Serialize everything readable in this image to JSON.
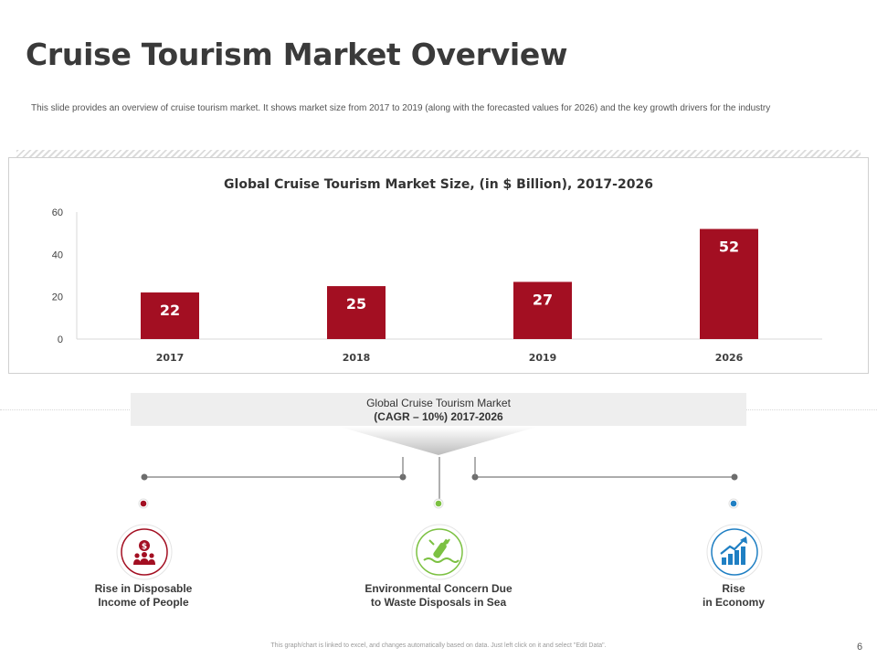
{
  "title": "Cruise Tourism Market Overview",
  "subtitle": "This slide provides an overview of cruise tourism market. It shows market size from 2017 to 2019 (along with the forecasted values for 2026) and the key growth drivers for the industry",
  "chart_data": {
    "type": "bar",
    "title": "Global Cruise Tourism Market Size, (in $ Billion), 2017-2026",
    "categories": [
      "2017",
      "2018",
      "2019",
      "2026"
    ],
    "values": [
      22,
      25,
      27,
      52
    ],
    "ylim": [
      0,
      60
    ],
    "yticks": [
      0,
      20,
      40,
      60
    ],
    "xlabel": "",
    "ylabel": "",
    "bar_color": "#a30f22",
    "grid": false
  },
  "cagr": {
    "line1": "Global Cruise Tourism Market",
    "line2": "(CAGR – 10%) 2017-2026"
  },
  "drivers": [
    {
      "line1": "Rise in Disposable",
      "line2": "Income of People",
      "color": "#a30f22",
      "icon": "dollar-people-icon"
    },
    {
      "line1": "Environmental Concern Due",
      "line2": "to Waste Disposals  in Sea",
      "color": "#7cc142",
      "icon": "bottle-waste-icon"
    },
    {
      "line1": "Rise",
      "line2": "in Economy",
      "color": "#1f7fc3",
      "icon": "growth-chart-icon"
    }
  ],
  "footer_note": "This graph/chart is linked to excel, and changes automatically based on data. Just left click on it and select \"Edit Data\".",
  "page_number": "6"
}
